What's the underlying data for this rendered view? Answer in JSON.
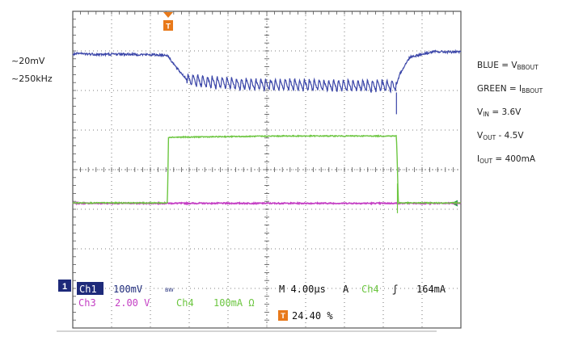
{
  "annotations": {
    "noise_amplitude": "~20mV",
    "noise_frequency": "~250kHz"
  },
  "legend": {
    "blue": {
      "prefix": "BLUE = V",
      "sub": "BBOUT"
    },
    "green": {
      "prefix": "GREEN = I",
      "sub": "BBOUT"
    },
    "vin": {
      "prefix": "V",
      "sub": "IN",
      "suffix": " = 3.6V"
    },
    "vout": {
      "prefix": "V",
      "sub": "OUT",
      "suffix": " - 4.5V"
    },
    "iout": {
      "prefix": "I",
      "sub": "OUT",
      "suffix": " = 400mA"
    }
  },
  "scope_status": {
    "ch1_label": "Ch1",
    "ch1_scale": "100mV",
    "ch1_coupling": "BW",
    "ch3_label": "Ch3",
    "ch3_scale": "2.00 V",
    "ch4_label": "Ch4",
    "ch4_scale": "100mA Ω",
    "timebase": "M 4.00µs",
    "trigger_mode": "A",
    "trigger_source": "Ch4",
    "trigger_slope": "ʃ",
    "trigger_level": "164mA",
    "trigger_position": "24.40 %",
    "ch1_marker": "1",
    "trigger_marker": "T"
  },
  "colors": {
    "blue": "#3a45a8",
    "green": "#6cc640",
    "magenta": "#c43fc4",
    "navy": "#1e2a7a",
    "orange": "#e8791a",
    "grid": "#555555",
    "ch4_ref": "#2aa44a"
  },
  "chart_data": {
    "type": "line",
    "x_unit": "µs",
    "divisions": {
      "x": 10,
      "y": 8
    },
    "xlim": [
      -9.76,
      30.24
    ],
    "grid": true,
    "series": [
      {
        "name": "BLUE = VBBOUT",
        "channel": "Ch1",
        "volts_per_div": 0.1,
        "points": [
          [
            -9.76,
            2.92
          ],
          [
            -9.0,
            2.93
          ],
          [
            -7.0,
            2.91
          ],
          [
            -5.0,
            2.92
          ],
          [
            -3.0,
            2.91
          ],
          [
            -1.0,
            2.9
          ],
          [
            0.0,
            2.89
          ],
          [
            1.0,
            2.55
          ],
          [
            2.0,
            2.28
          ],
          [
            4.0,
            2.22
          ],
          [
            8.0,
            2.15
          ],
          [
            12.0,
            2.15
          ],
          [
            16.0,
            2.13
          ],
          [
            20.0,
            2.12
          ],
          [
            23.6,
            2.12
          ],
          [
            24.0,
            2.45
          ],
          [
            25.0,
            2.85
          ],
          [
            26.5,
            2.93
          ],
          [
            27.5,
            2.98
          ],
          [
            30.24,
            2.97
          ]
        ],
        "ripple_period_us": 4.0,
        "ripple_amplitude_div": 0.3
      },
      {
        "name": "GREEN = IBBOUT",
        "channel": "Ch4",
        "amps_per_div": 0.1,
        "points": [
          [
            -9.76,
            -0.84
          ],
          [
            0.0,
            -0.84
          ],
          [
            0.1,
            0.82
          ],
          [
            1.0,
            0.82
          ],
          [
            12.0,
            0.85
          ],
          [
            23.6,
            0.85
          ],
          [
            23.8,
            -0.84
          ],
          [
            30.24,
            -0.84
          ]
        ]
      },
      {
        "name": "Ch3",
        "channel": "Ch3",
        "volts_per_div": 2.0,
        "points": [
          [
            -9.76,
            -0.85
          ],
          [
            30.24,
            -0.85
          ]
        ]
      }
    ]
  }
}
